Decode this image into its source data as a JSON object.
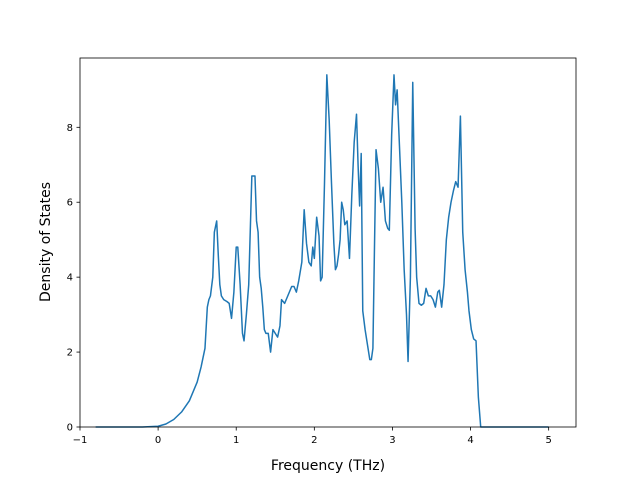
{
  "chart_data": {
    "type": "line",
    "title": "",
    "xlabel": "Frequency (THz)",
    "ylabel": "Density of States",
    "xlim": [
      -1.0,
      5.35
    ],
    "ylim": [
      0,
      9.85
    ],
    "xticks": [
      -1,
      0,
      1,
      2,
      3,
      4,
      5
    ],
    "xtick_labels": [
      "−1",
      "0",
      "1",
      "2",
      "3",
      "4",
      "5"
    ],
    "yticks": [
      0,
      2,
      4,
      6,
      8
    ],
    "ytick_labels": [
      "0",
      "2",
      "4",
      "6",
      "8"
    ],
    "grid": false,
    "legend": "none",
    "series": [
      {
        "color": "#1f77b4",
        "x": [
          -0.8,
          -0.6,
          -0.4,
          -0.2,
          0.0,
          0.1,
          0.2,
          0.3,
          0.4,
          0.45,
          0.5,
          0.55,
          0.6,
          0.63,
          0.65,
          0.67,
          0.7,
          0.72,
          0.75,
          0.77,
          0.79,
          0.81,
          0.84,
          0.88,
          0.91,
          0.94,
          0.97,
          1.0,
          1.02,
          1.05,
          1.08,
          1.1,
          1.13,
          1.16,
          1.2,
          1.24,
          1.26,
          1.28,
          1.3,
          1.32,
          1.34,
          1.36,
          1.38,
          1.41,
          1.44,
          1.47,
          1.5,
          1.53,
          1.56,
          1.58,
          1.62,
          1.65,
          1.68,
          1.71,
          1.74,
          1.77,
          1.8,
          1.84,
          1.87,
          1.9,
          1.93,
          1.96,
          1.98,
          2.0,
          2.03,
          2.06,
          2.08,
          2.1,
          2.13,
          2.16,
          2.19,
          2.22,
          2.25,
          2.27,
          2.29,
          2.31,
          2.33,
          2.35,
          2.37,
          2.39,
          2.42,
          2.45,
          2.48,
          2.51,
          2.54,
          2.56,
          2.58,
          2.6,
          2.62,
          2.65,
          2.68,
          2.71,
          2.73,
          2.75,
          2.77,
          2.79,
          2.82,
          2.85,
          2.88,
          2.91,
          2.94,
          2.96,
          2.99,
          3.02,
          3.04,
          3.06,
          3.09,
          3.12,
          3.15,
          3.18,
          3.2,
          3.23,
          3.26,
          3.29,
          3.31,
          3.34,
          3.37,
          3.4,
          3.43,
          3.46,
          3.49,
          3.52,
          3.55,
          3.58,
          3.6,
          3.63,
          3.66,
          3.69,
          3.72,
          3.75,
          3.78,
          3.81,
          3.84,
          3.87,
          3.9,
          3.93,
          3.96,
          3.98,
          4.01,
          4.04,
          4.07,
          4.1,
          4.13,
          4.16,
          4.19,
          4.22,
          4.25,
          4.28,
          4.3,
          4.32,
          4.35,
          4.38,
          4.41,
          4.44,
          4.47,
          4.5,
          4.53,
          4.55,
          4.57,
          4.58,
          4.6,
          4.63,
          4.7,
          4.8,
          5.0
        ],
        "y": [
          0,
          0,
          0,
          0,
          0.02,
          0.08,
          0.2,
          0.4,
          0.7,
          0.95,
          1.2,
          1.6,
          2.1,
          3.2,
          3.4,
          3.5,
          4.0,
          5.2,
          5.5,
          4.6,
          3.8,
          3.5,
          3.4,
          3.35,
          3.3,
          2.9,
          3.6,
          4.8,
          4.8,
          3.8,
          2.5,
          2.3,
          3.0,
          3.8,
          6.7,
          6.7,
          5.5,
          5.2,
          4.0,
          3.7,
          3.2,
          2.6,
          2.5,
          2.5,
          2.0,
          2.6,
          2.5,
          2.4,
          2.7,
          3.4,
          3.3,
          3.45,
          3.6,
          3.75,
          3.75,
          3.6,
          3.9,
          4.4,
          5.8,
          4.9,
          4.4,
          4.3,
          4.8,
          4.5,
          5.6,
          5.1,
          3.9,
          4.0,
          6.5,
          9.4,
          8.2,
          6.5,
          4.9,
          4.2,
          4.3,
          4.6,
          5.0,
          6.0,
          5.8,
          5.4,
          5.5,
          4.5,
          6.2,
          7.6,
          8.35,
          7.0,
          5.9,
          7.3,
          3.1,
          2.6,
          2.2,
          1.8,
          1.8,
          2.1,
          4.8,
          7.4,
          6.9,
          6.0,
          6.4,
          5.5,
          5.3,
          5.25,
          7.8,
          9.4,
          8.6,
          9.0,
          7.5,
          6.0,
          4.2,
          3.0,
          1.75,
          4.0,
          9.2,
          5.3,
          4.0,
          3.3,
          3.25,
          3.3,
          3.7,
          3.5,
          3.5,
          3.4,
          3.2,
          3.6,
          3.65,
          3.2,
          3.8,
          5.0,
          5.6,
          6.0,
          6.3,
          6.55,
          6.4,
          8.3,
          5.2,
          4.2,
          3.6,
          3.1,
          2.6,
          2.35,
          2.3,
          0.8,
          0.0,
          0.0,
          0.0,
          0.0,
          0.0,
          0.0,
          0,
          0,
          0,
          0,
          0,
          0,
          0,
          0,
          0,
          0,
          0,
          0,
          0,
          0,
          0,
          0,
          0
        ]
      }
    ]
  }
}
